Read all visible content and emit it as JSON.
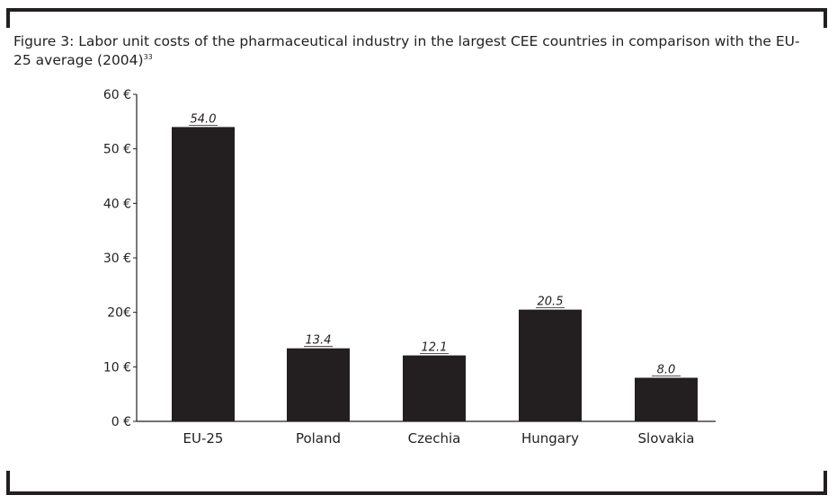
{
  "title": "Figure 3: Labor unit costs of the pharmaceutical industry in the largest CEE countries in comparison with the EU-25 average (2004)",
  "footnote_ref": "33",
  "chart_data": {
    "type": "bar",
    "categories": [
      "EU-25",
      "Poland",
      "Czechia",
      "Hungary",
      "Slovakia"
    ],
    "values": [
      54.0,
      13.4,
      12.1,
      20.5,
      8.0
    ],
    "value_labels": [
      "54.0",
      "13.4",
      "12.1",
      "20.5",
      "8.0"
    ],
    "yticks": [
      0,
      10,
      20,
      30,
      40,
      50,
      60
    ],
    "ytick_labels": [
      "0 €",
      "10 €",
      "20€",
      "30 €",
      "40 €",
      "50 €",
      "60 €"
    ],
    "ylim": [
      0,
      60
    ],
    "xlabel": "",
    "ylabel": "",
    "bar_color": "#231f20",
    "grid": false,
    "legend": "none"
  }
}
